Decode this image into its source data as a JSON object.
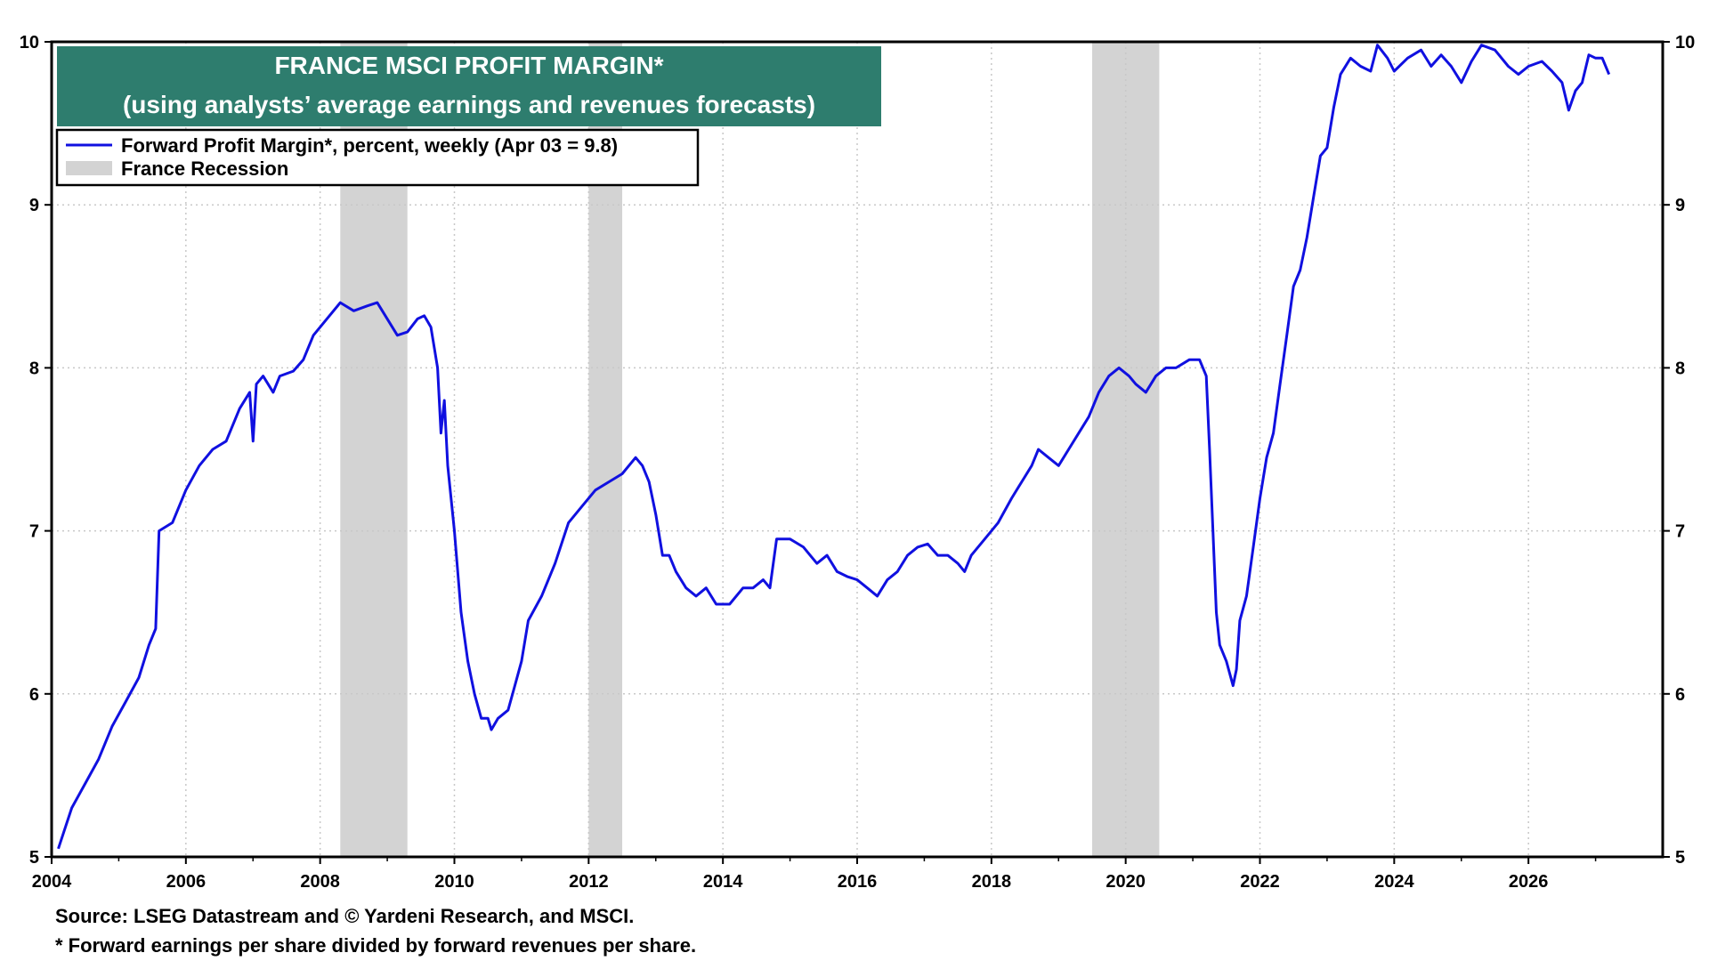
{
  "chart_data": {
    "type": "line",
    "title": "FRANCE MSCI PROFIT MARGIN*",
    "subtitle": "(using analysts’ average earnings and revenues forecasts)",
    "xlabel": "",
    "ylabel": "",
    "xlim": [
      2004,
      2028
    ],
    "ylim": [
      5,
      10
    ],
    "x_ticks": [
      "2004",
      "2006",
      "2008",
      "2010",
      "2012",
      "2014",
      "2016",
      "2018",
      "2020",
      "2022",
      "2024",
      "2026"
    ],
    "y_ticks": [
      "5",
      "6",
      "7",
      "8",
      "9",
      "10"
    ],
    "grid": true,
    "legend_position": "top-left",
    "series": [
      {
        "name": "Forward Profit Margin*, percent, weekly (Apr 03 = 9.8)",
        "color": "#1010e0",
        "points": [
          [
            2004.1,
            5.05
          ],
          [
            2004.3,
            5.3
          ],
          [
            2004.5,
            5.45
          ],
          [
            2004.7,
            5.6
          ],
          [
            2004.9,
            5.8
          ],
          [
            2005.1,
            5.95
          ],
          [
            2005.3,
            6.1
          ],
          [
            2005.45,
            6.3
          ],
          [
            2005.55,
            6.4
          ],
          [
            2005.6,
            7.0
          ],
          [
            2005.8,
            7.05
          ],
          [
            2006.0,
            7.25
          ],
          [
            2006.2,
            7.4
          ],
          [
            2006.4,
            7.5
          ],
          [
            2006.6,
            7.55
          ],
          [
            2006.8,
            7.75
          ],
          [
            2006.95,
            7.85
          ],
          [
            2007.0,
            7.55
          ],
          [
            2007.05,
            7.9
          ],
          [
            2007.15,
            7.95
          ],
          [
            2007.3,
            7.85
          ],
          [
            2007.4,
            7.95
          ],
          [
            2007.6,
            7.98
          ],
          [
            2007.75,
            8.05
          ],
          [
            2007.9,
            8.2
          ],
          [
            2008.1,
            8.3
          ],
          [
            2008.3,
            8.4
          ],
          [
            2008.5,
            8.35
          ],
          [
            2008.7,
            8.38
          ],
          [
            2008.85,
            8.4
          ],
          [
            2009.0,
            8.3
          ],
          [
            2009.15,
            8.2
          ],
          [
            2009.3,
            8.22
          ],
          [
            2009.45,
            8.3
          ],
          [
            2009.55,
            8.32
          ],
          [
            2009.65,
            8.25
          ],
          [
            2009.75,
            8.0
          ],
          [
            2009.8,
            7.6
          ],
          [
            2009.85,
            7.8
          ],
          [
            2009.9,
            7.4
          ],
          [
            2010.0,
            7.0
          ],
          [
            2010.1,
            6.5
          ],
          [
            2010.2,
            6.2
          ],
          [
            2010.3,
            6.0
          ],
          [
            2010.4,
            5.85
          ],
          [
            2010.5,
            5.85
          ],
          [
            2010.55,
            5.78
          ],
          [
            2010.65,
            5.85
          ],
          [
            2010.8,
            5.9
          ],
          [
            2010.9,
            6.05
          ],
          [
            2011.0,
            6.2
          ],
          [
            2011.1,
            6.45
          ],
          [
            2011.3,
            6.6
          ],
          [
            2011.5,
            6.8
          ],
          [
            2011.7,
            7.05
          ],
          [
            2011.9,
            7.15
          ],
          [
            2012.1,
            7.25
          ],
          [
            2012.3,
            7.3
          ],
          [
            2012.5,
            7.35
          ],
          [
            2012.7,
            7.45
          ],
          [
            2012.8,
            7.4
          ],
          [
            2012.9,
            7.3
          ],
          [
            2013.0,
            7.1
          ],
          [
            2013.1,
            6.85
          ],
          [
            2013.2,
            6.85
          ],
          [
            2013.3,
            6.75
          ],
          [
            2013.45,
            6.65
          ],
          [
            2013.6,
            6.6
          ],
          [
            2013.75,
            6.65
          ],
          [
            2013.9,
            6.55
          ],
          [
            2014.1,
            6.55
          ],
          [
            2014.3,
            6.65
          ],
          [
            2014.45,
            6.65
          ],
          [
            2014.6,
            6.7
          ],
          [
            2014.7,
            6.65
          ],
          [
            2014.8,
            6.95
          ],
          [
            2015.0,
            6.95
          ],
          [
            2015.2,
            6.9
          ],
          [
            2015.3,
            6.85
          ],
          [
            2015.4,
            6.8
          ],
          [
            2015.55,
            6.85
          ],
          [
            2015.7,
            6.75
          ],
          [
            2015.85,
            6.72
          ],
          [
            2016.0,
            6.7
          ],
          [
            2016.15,
            6.65
          ],
          [
            2016.3,
            6.6
          ],
          [
            2016.45,
            6.7
          ],
          [
            2016.6,
            6.75
          ],
          [
            2016.75,
            6.85
          ],
          [
            2016.9,
            6.9
          ],
          [
            2017.05,
            6.92
          ],
          [
            2017.2,
            6.85
          ],
          [
            2017.35,
            6.85
          ],
          [
            2017.5,
            6.8
          ],
          [
            2017.6,
            6.75
          ],
          [
            2017.7,
            6.85
          ],
          [
            2017.9,
            6.95
          ],
          [
            2018.1,
            7.05
          ],
          [
            2018.3,
            7.2
          ],
          [
            2018.45,
            7.3
          ],
          [
            2018.6,
            7.4
          ],
          [
            2018.7,
            7.5
          ],
          [
            2018.85,
            7.45
          ],
          [
            2019.0,
            7.4
          ],
          [
            2019.15,
            7.5
          ],
          [
            2019.3,
            7.6
          ],
          [
            2019.45,
            7.7
          ],
          [
            2019.6,
            7.85
          ],
          [
            2019.75,
            7.95
          ],
          [
            2019.9,
            8.0
          ],
          [
            2020.05,
            7.95
          ],
          [
            2020.15,
            7.9
          ],
          [
            2020.3,
            7.85
          ],
          [
            2020.45,
            7.95
          ],
          [
            2020.6,
            8.0
          ],
          [
            2020.75,
            8.0
          ],
          [
            2020.95,
            8.05
          ],
          [
            2021.1,
            8.05
          ],
          [
            2021.2,
            7.95
          ],
          [
            2021.25,
            7.5
          ],
          [
            2021.3,
            7.0
          ],
          [
            2021.35,
            6.5
          ],
          [
            2021.4,
            6.3
          ],
          [
            2021.5,
            6.2
          ],
          [
            2021.6,
            6.05
          ],
          [
            2021.65,
            6.15
          ],
          [
            2021.7,
            6.45
          ],
          [
            2021.8,
            6.6
          ],
          [
            2021.9,
            6.9
          ],
          [
            2022.0,
            7.2
          ],
          [
            2022.1,
            7.45
          ],
          [
            2022.2,
            7.6
          ],
          [
            2022.3,
            7.9
          ],
          [
            2022.4,
            8.2
          ],
          [
            2022.5,
            8.5
          ],
          [
            2022.6,
            8.6
          ],
          [
            2022.7,
            8.8
          ],
          [
            2022.8,
            9.05
          ],
          [
            2022.9,
            9.3
          ],
          [
            2023.0,
            9.35
          ],
          [
            2023.1,
            9.6
          ],
          [
            2023.2,
            9.8
          ],
          [
            2023.35,
            9.9
          ],
          [
            2023.5,
            9.85
          ],
          [
            2023.65,
            9.82
          ],
          [
            2023.75,
            9.98
          ],
          [
            2023.9,
            9.9
          ],
          [
            2024.0,
            9.82
          ],
          [
            2024.2,
            9.9
          ],
          [
            2024.4,
            9.95
          ],
          [
            2024.55,
            9.85
          ],
          [
            2024.7,
            9.92
          ],
          [
            2024.85,
            9.85
          ],
          [
            2025.0,
            9.75
          ],
          [
            2025.15,
            9.88
          ],
          [
            2025.3,
            9.98
          ],
          [
            2025.5,
            9.95
          ],
          [
            2025.7,
            9.85
          ],
          [
            2025.85,
            9.8
          ],
          [
            2026.0,
            9.85
          ],
          [
            2026.2,
            9.88
          ],
          [
            2026.35,
            9.82
          ],
          [
            2026.5,
            9.75
          ],
          [
            2026.6,
            9.58
          ],
          [
            2026.7,
            9.7
          ],
          [
            2026.8,
            9.75
          ],
          [
            2026.9,
            9.92
          ],
          [
            2027.0,
            9.9
          ],
          [
            2027.1,
            9.9
          ],
          [
            2027.2,
            9.8
          ]
        ]
      }
    ],
    "recessions": {
      "name": "France Recession",
      "color": "#d3d3d3",
      "periods": [
        [
          2008.3,
          2009.3
        ],
        [
          2012.0,
          2012.5
        ],
        [
          2019.5,
          2020.5
        ]
      ]
    }
  },
  "footnotes": {
    "source": "Source: LSEG Datastream and © Yardeni Research, and MSCI.",
    "definition": "* Forward earnings per share divided by forward revenues per share."
  }
}
